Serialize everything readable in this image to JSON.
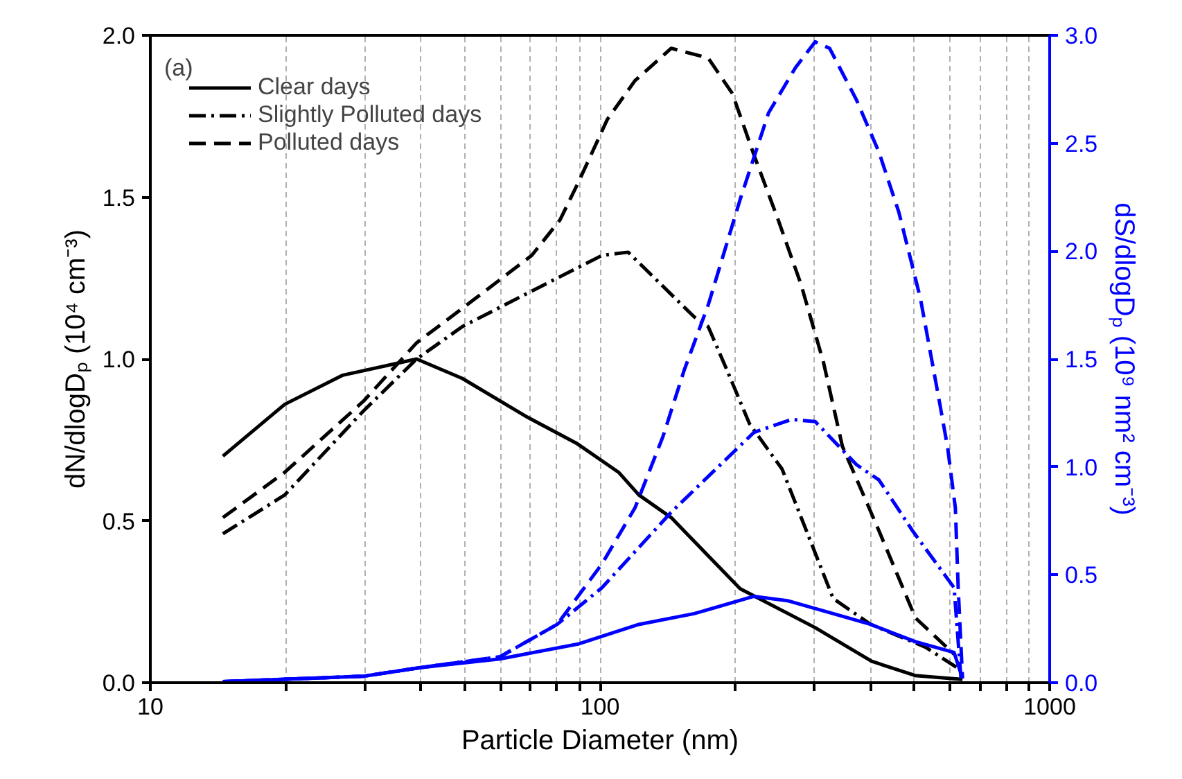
{
  "chart_data": {
    "type": "line",
    "xlabel": "Particle Diameter (nm)",
    "ylabel": "dN/dlogDₚ (10⁴ cm⁻³)",
    "y2label": "dS/dlogDₚ (10⁹ nm² cm⁻³)",
    "annotations": [
      "(a)"
    ],
    "log": "x",
    "grid": "x",
    "legend": "top left",
    "marker": "none",
    "xlim": [
      10,
      1000
    ],
    "xticks": [
      10,
      {
        "value": 20,
        "label": null
      },
      {
        "value": 30,
        "label": null
      },
      {
        "value": 40,
        "label": null
      },
      {
        "value": 50,
        "label": null
      },
      {
        "value": 60,
        "label": null
      },
      {
        "value": 70,
        "label": null
      },
      {
        "value": 80,
        "label": null
      },
      {
        "value": 90,
        "label": null
      },
      100,
      {
        "value": 200,
        "label": null
      },
      {
        "value": 300,
        "label": null
      },
      {
        "value": 400,
        "label": null
      },
      {
        "value": 500,
        "label": null
      },
      {
        "value": 600,
        "label": null
      },
      {
        "value": 700,
        "label": null
      },
      {
        "value": 800,
        "label": null
      },
      {
        "value": 900,
        "label": null
      },
      1000
    ],
    "ylim": [
      0,
      2.0
    ],
    "yticks": [
      {
        "value": 0,
        "label": "0.0"
      },
      {
        "value": 0.5,
        "label": "0.5"
      },
      {
        "value": 1.0,
        "label": "1.0"
      },
      {
        "value": 1.5,
        "label": "1.5"
      },
      {
        "value": 2.0,
        "label": "2.0"
      }
    ],
    "y2lim": [
      0,
      3.0
    ],
    "y2ticks": [
      {
        "value": 0,
        "label": "0.0"
      },
      {
        "value": 0.5,
        "label": "0.5"
      },
      {
        "value": 1.0,
        "label": "1.0"
      },
      {
        "value": 1.5,
        "label": "1.5"
      },
      {
        "value": 2.0,
        "label": "2.0"
      },
      {
        "value": 2.5,
        "label": "2.5"
      },
      {
        "value": 3.0,
        "label": "3.0"
      }
    ],
    "series": [
      {
        "name": "Clear days",
        "color": "#000000",
        "line_style": "solid",
        "x": [
          14.5,
          19.9,
          26.8,
          39.1,
          49.4,
          69,
          88.6,
          110,
          122,
          144,
          205,
          301,
          402,
          502,
          604,
          640
        ],
        "values": [
          0.7,
          0.86,
          0.95,
          1.0,
          0.94,
          0.82,
          0.74,
          0.65,
          0.58,
          0.51,
          0.29,
          0.17,
          0.066,
          0.022,
          0.013,
          0.01
        ]
      },
      {
        "name": "Slightly Polluted days",
        "color": "#000000",
        "line_style": "dashdot",
        "x": [
          14.5,
          19.9,
          29.8,
          39.1,
          49.4,
          70.5,
          101,
          115.5,
          162,
          174,
          191,
          215,
          254,
          330,
          400,
          529,
          626
        ],
        "values": [
          0.46,
          0.58,
          0.84,
          1.0,
          1.1,
          1.21,
          1.32,
          1.33,
          1.13,
          1.1,
          0.97,
          0.8,
          0.66,
          0.26,
          0.18,
          0.11,
          0.044
        ]
      },
      {
        "name": "Polluted days",
        "color": "#000000",
        "line_style": "dashed",
        "x": [
          14.5,
          19.9,
          29.8,
          39.1,
          50.9,
          70.5,
          81.5,
          89.8,
          103.8,
          119.6,
          144,
          174,
          197,
          220,
          249,
          280,
          314,
          346,
          417,
          503,
          613
        ],
        "values": [
          0.51,
          0.65,
          0.87,
          1.05,
          1.17,
          1.32,
          1.43,
          1.55,
          1.74,
          1.86,
          1.96,
          1.93,
          1.82,
          1.63,
          1.43,
          1.23,
          0.99,
          0.73,
          0.47,
          0.2,
          0.088
        ]
      },
      {
        "color": "#0000ff",
        "axis": "y2",
        "line_style": "solid",
        "x": [
          14.5,
          29.8,
          39.9,
          59.9,
          89.8,
          122,
          162,
          220,
          261,
          330,
          400,
          503,
          613,
          640
        ],
        "values": [
          0.005,
          0.03,
          0.07,
          0.11,
          0.18,
          0.27,
          0.32,
          0.4,
          0.38,
          0.32,
          0.27,
          0.19,
          0.14,
          0.02
        ]
      },
      {
        "color": "#0000ff",
        "axis": "y2",
        "line_style": "dashdot",
        "x": [
          14.5,
          29.8,
          39.9,
          59.9,
          80.3,
          101,
          144,
          220,
          267,
          301,
          372,
          417,
          497,
          613,
          635
        ],
        "values": [
          0.005,
          0.03,
          0.07,
          0.12,
          0.27,
          0.44,
          0.79,
          1.16,
          1.22,
          1.21,
          1.01,
          0.94,
          0.7,
          0.44,
          0.02
        ]
      },
      {
        "color": "#0000ff",
        "axis": "y2",
        "line_style": "dashed",
        "x": [
          14.5,
          29.8,
          39.9,
          59.9,
          80.3,
          101,
          119.6,
          138,
          154,
          174,
          205,
          237,
          272,
          301,
          324,
          372,
          417,
          462,
          516,
          570,
          593,
          617,
          626,
          640
        ],
        "values": [
          0.005,
          0.03,
          0.07,
          0.12,
          0.27,
          0.55,
          0.81,
          1.14,
          1.45,
          1.75,
          2.24,
          2.64,
          2.85,
          2.97,
          2.94,
          2.7,
          2.46,
          2.18,
          1.78,
          1.29,
          1.09,
          0.81,
          0.44,
          0.02
        ]
      }
    ]
  }
}
